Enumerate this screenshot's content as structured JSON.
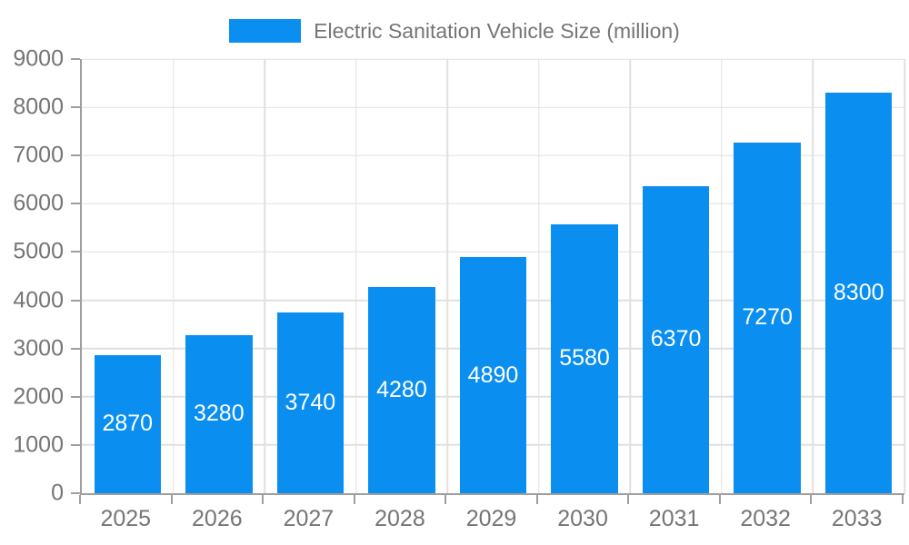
{
  "legend": {
    "label": "Electric Sanitation Vehicle Size (million)"
  },
  "chart_data": {
    "type": "bar",
    "title": "",
    "series_name": "Electric Sanitation Vehicle Size (million)",
    "categories": [
      "2025",
      "2026",
      "2027",
      "2028",
      "2029",
      "2030",
      "2031",
      "2032",
      "2033"
    ],
    "values": [
      2870,
      3280,
      3740,
      4280,
      4890,
      5580,
      6370,
      7270,
      8300
    ],
    "xlabel": "",
    "ylabel": "",
    "ylim": [
      0,
      9000
    ],
    "ytick_step": 1000,
    "grid": true,
    "legend_position": "top-center",
    "value_labels": "inside-center",
    "colors": {
      "bar": "#0A8FF0",
      "value_label": "#FFFFFF",
      "axis_text": "#757575",
      "grid_line": "#E0E0E0",
      "axis_line": "#9E9E9E",
      "background": "#FFFFFF"
    }
  }
}
